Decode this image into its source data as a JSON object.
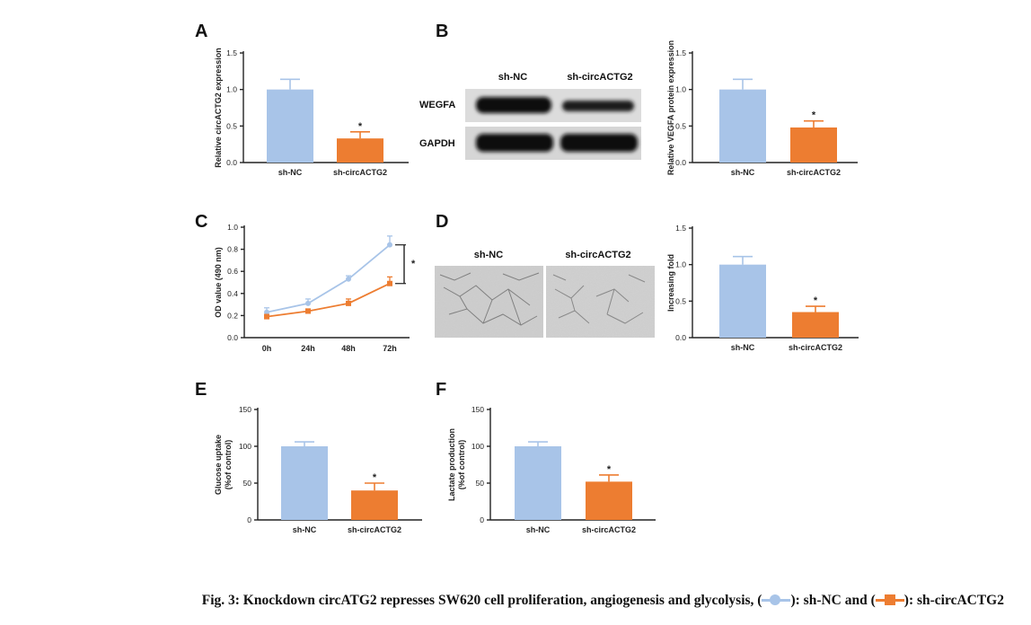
{
  "colors": {
    "sh_nc": "#a8c4e8",
    "sh_circ": "#ed7d31",
    "err_nc": "#a8c4e8",
    "err_circ": "#ed7d31"
  },
  "chart_data": [
    {
      "panel": "A",
      "type": "bar",
      "categories": [
        "sh-NC",
        "sh-circACTG2"
      ],
      "values": [
        1.0,
        0.33
      ],
      "errors": [
        0.14,
        0.09
      ],
      "ylabel": "Relative circACTG2 expression",
      "ylim": [
        0,
        1.5
      ],
      "yticks": [
        "0.0",
        "0.5",
        "1.0",
        "1.5"
      ],
      "annotations": [
        "*"
      ]
    },
    {
      "panel": "B",
      "type": "bar",
      "categories": [
        "sh-NC",
        "sh-circACTG2"
      ],
      "values": [
        1.0,
        0.48
      ],
      "errors": [
        0.14,
        0.09
      ],
      "ylabel": "Relative VEGFA protein expression",
      "ylim": [
        0,
        1.5
      ],
      "yticks": [
        "0.0",
        "0.5",
        "1.0",
        "1.5"
      ],
      "annotations": [
        "*"
      ]
    },
    {
      "panel": "C",
      "type": "line",
      "x": [
        "0h",
        "24h",
        "48h",
        "72h"
      ],
      "series": [
        {
          "name": "sh-NC",
          "values": [
            0.23,
            0.31,
            0.53,
            0.84
          ],
          "errors": [
            0.04,
            0.04,
            0.03,
            0.08
          ]
        },
        {
          "name": "sh-circACTG2",
          "values": [
            0.19,
            0.24,
            0.31,
            0.49
          ],
          "errors": [
            0.02,
            0.02,
            0.04,
            0.06
          ]
        }
      ],
      "ylabel": "OD value (490 nm)",
      "ylim": [
        0,
        1.0
      ],
      "yticks": [
        "0.0",
        "0.2",
        "0.4",
        "0.6",
        "0.8",
        "1.0"
      ],
      "annotations": [
        "*"
      ]
    },
    {
      "panel": "D",
      "type": "bar",
      "categories": [
        "sh-NC",
        "sh-circACTG2"
      ],
      "values": [
        1.0,
        0.35
      ],
      "errors": [
        0.11,
        0.08
      ],
      "ylabel": "Increasing fold",
      "ylim": [
        0,
        1.5
      ],
      "yticks": [
        "0.0",
        "0.5",
        "1.0",
        "1.5"
      ],
      "annotations": [
        "*"
      ]
    },
    {
      "panel": "E",
      "type": "bar",
      "categories": [
        "sh-NC",
        "sh-circACTG2"
      ],
      "values": [
        100,
        40
      ],
      "errors": [
        6,
        10
      ],
      "ylabel": [
        "Glucose uptake",
        "(%of control)"
      ],
      "ylim": [
        0,
        150
      ],
      "yticks": [
        "0",
        "50",
        "100",
        "150"
      ],
      "annotations": [
        "*"
      ]
    },
    {
      "panel": "F",
      "type": "bar",
      "categories": [
        "sh-NC",
        "sh-circACTG2"
      ],
      "values": [
        100,
        52
      ],
      "errors": [
        6,
        9
      ],
      "ylabel": [
        "Lactate production",
        "(%of control)"
      ],
      "ylim": [
        0,
        150
      ],
      "yticks": [
        "0",
        "50",
        "100",
        "150"
      ],
      "annotations": [
        "*"
      ]
    }
  ],
  "blot": {
    "columns": [
      "sh-NC",
      "sh-circACTG2"
    ],
    "rows": [
      "WEGFA",
      "GAPDH"
    ]
  },
  "micro": {
    "columns": [
      "sh-NC",
      "sh-circACTG2"
    ]
  },
  "caption": {
    "prefix": "Fig. 3: Knockdown circATG2 represses SW620 cell proliferation, angiogenesis and glycolysis, (",
    "mid1": "): sh-NC and (",
    "mid2": "): sh-circACTG2"
  }
}
